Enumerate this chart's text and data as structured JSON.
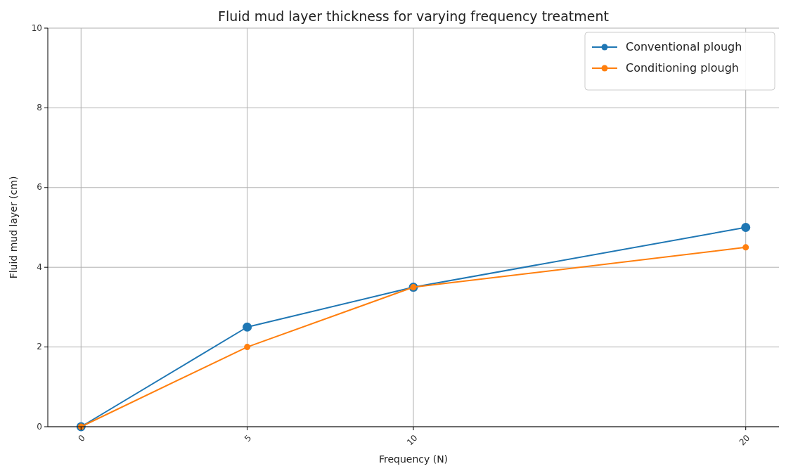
{
  "chart_data": {
    "type": "line",
    "title": "Fluid mud layer thickness for varying frequency treatment",
    "xlabel": "Frequency (N)",
    "ylabel": "Fluid mud layer (cm)",
    "x": [
      0,
      5,
      10,
      20
    ],
    "series": [
      {
        "name": "Conventional plough",
        "color": "#1f77b4",
        "values": [
          0,
          2.5,
          3.5,
          5
        ]
      },
      {
        "name": "Conditioning plough",
        "color": "#ff7f0e",
        "values": [
          0,
          2,
          3.5,
          4.5
        ]
      }
    ],
    "xlim": [
      -1,
      21
    ],
    "xticks": [
      0,
      5,
      10,
      20
    ],
    "ylim": [
      0,
      10
    ],
    "yticks": [
      0,
      2,
      4,
      6,
      8,
      10
    ],
    "grid": true,
    "legend": "top right",
    "marker": "circle"
  }
}
